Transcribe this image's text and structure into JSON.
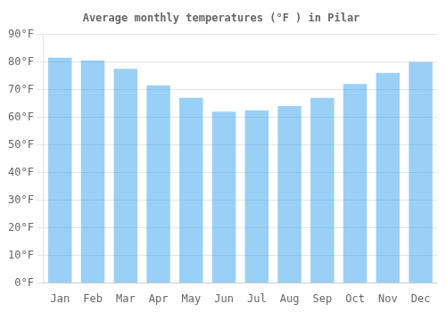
{
  "chart_data": {
    "type": "bar",
    "title": "Average monthly temperatures (°F ) in Pilar",
    "categories": [
      "Jan",
      "Feb",
      "Mar",
      "Apr",
      "May",
      "Jun",
      "Jul",
      "Aug",
      "Sep",
      "Oct",
      "Nov",
      "Dec"
    ],
    "values": [
      81.5,
      80.5,
      77.5,
      71.5,
      67,
      62,
      62.5,
      64,
      67,
      72,
      76,
      80
    ],
    "ylim": [
      0,
      90
    ],
    "yticks": [
      {
        "value": 0,
        "label": "0°F"
      },
      {
        "value": 10,
        "label": "10°F"
      },
      {
        "value": 20,
        "label": "20°F"
      },
      {
        "value": 30,
        "label": "30°F"
      },
      {
        "value": 40,
        "label": "40°F"
      },
      {
        "value": 50,
        "label": "50°F"
      },
      {
        "value": 60,
        "label": "60°F"
      },
      {
        "value": 70,
        "label": "70°F"
      },
      {
        "value": 80,
        "label": "80°F"
      },
      {
        "value": 90,
        "label": "90°F"
      }
    ],
    "grid": true
  }
}
